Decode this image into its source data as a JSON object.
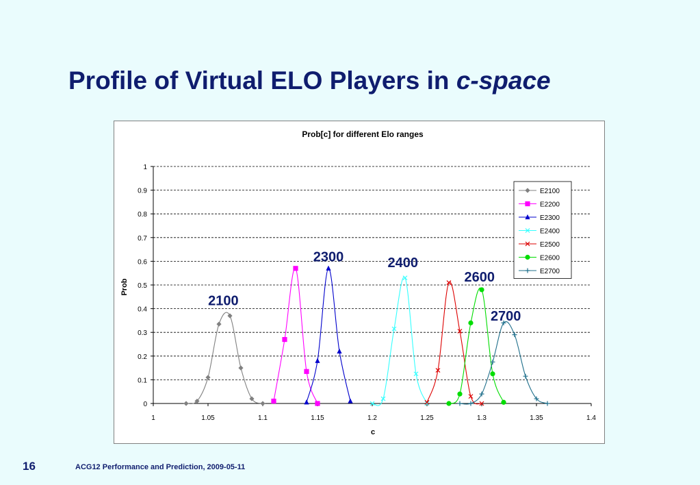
{
  "slide": {
    "title_main": "Profile of Virtual ELO Players in ",
    "title_emph": "c-space",
    "number": "16",
    "footer": "ACG12 Performance and Prediction, 2009-05-11"
  },
  "chart_data": {
    "type": "line",
    "title": "Prob[c] for different Elo ranges",
    "xlabel": "c",
    "ylabel": "Prob",
    "xlim": [
      1,
      1.4
    ],
    "ylim": [
      0,
      1
    ],
    "xticks": [
      "1",
      "1.05",
      "1.1",
      "1.15",
      "1.2",
      "1.25",
      "1.3",
      "1.35",
      "1.4"
    ],
    "yticks": [
      "0",
      "0.1",
      "0.2",
      "0.3",
      "0.4",
      "0.5",
      "0.6",
      "0.7",
      "0.8",
      "0.9",
      "1"
    ],
    "grid": "horizontal dashed",
    "legend_position": "top-right",
    "series": [
      {
        "name": "E2100",
        "color": "#808080",
        "marker": "diamond",
        "x": [
          1.03,
          1.04,
          1.05,
          1.06,
          1.07,
          1.08,
          1.09,
          1.1
        ],
        "y": [
          0.0,
          0.01,
          0.11,
          0.335,
          0.37,
          0.15,
          0.02,
          0.0
        ]
      },
      {
        "name": "E2200",
        "color": "#ff00ff",
        "marker": "square",
        "x": [
          1.11,
          1.12,
          1.13,
          1.14,
          1.15
        ],
        "y": [
          0.01,
          0.27,
          0.57,
          0.135,
          0.0
        ]
      },
      {
        "name": "E2300",
        "color": "#0000cc",
        "marker": "triangle",
        "x": [
          1.14,
          1.15,
          1.16,
          1.17,
          1.18
        ],
        "y": [
          0.005,
          0.18,
          0.57,
          0.22,
          0.01
        ]
      },
      {
        "name": "E2400",
        "color": "#33ffff",
        "marker": "x",
        "x": [
          1.2,
          1.21,
          1.22,
          1.23,
          1.24,
          1.25
        ],
        "y": [
          0.0,
          0.02,
          0.315,
          0.53,
          0.125,
          0.0
        ]
      },
      {
        "name": "E2500",
        "color": "#dd0000",
        "marker": "x",
        "x": [
          1.25,
          1.26,
          1.27,
          1.28,
          1.29,
          1.3
        ],
        "y": [
          0.005,
          0.14,
          0.51,
          0.305,
          0.03,
          0.0
        ]
      },
      {
        "name": "E2600",
        "color": "#00dd00",
        "marker": "circle",
        "x": [
          1.27,
          1.28,
          1.29,
          1.3,
          1.31,
          1.32
        ],
        "y": [
          0.0,
          0.04,
          0.34,
          0.48,
          0.125,
          0.005
        ]
      },
      {
        "name": "E2700",
        "color": "#1f6f8b",
        "marker": "plus",
        "x": [
          1.28,
          1.29,
          1.3,
          1.31,
          1.32,
          1.33,
          1.34,
          1.35,
          1.36
        ],
        "y": [
          0.0,
          0.0,
          0.04,
          0.175,
          0.34,
          0.29,
          0.115,
          0.02,
          0.0
        ]
      }
    ],
    "annotations": [
      {
        "text": "2100",
        "x": 1.064,
        "y": 0.415
      },
      {
        "text": "2300",
        "x": 1.16,
        "y": 0.6
      },
      {
        "text": "2400",
        "x": 1.228,
        "y": 0.575
      },
      {
        "text": "2600",
        "x": 1.298,
        "y": 0.515
      },
      {
        "text": "2700",
        "x": 1.322,
        "y": 0.35
      }
    ]
  }
}
